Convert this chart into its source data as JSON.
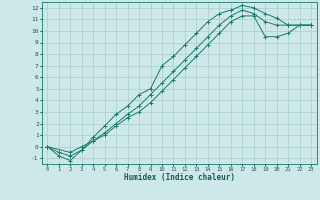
{
  "xlabel": "Humidex (Indice chaleur)",
  "bg_color": "#cce8e8",
  "grid_color": "#aacccc",
  "line_color": "#1a7a6a",
  "xlim": [
    -0.5,
    23.5
  ],
  "ylim": [
    -1.5,
    12.5
  ],
  "xticks": [
    0,
    1,
    2,
    3,
    4,
    5,
    6,
    7,
    8,
    9,
    10,
    11,
    12,
    13,
    14,
    15,
    16,
    17,
    18,
    19,
    20,
    21,
    22,
    23
  ],
  "yticks": [
    -1,
    0,
    1,
    2,
    3,
    4,
    5,
    6,
    7,
    8,
    9,
    10,
    11,
    12
  ],
  "series": [
    {
      "x": [
        0,
        1,
        2,
        3,
        4,
        5,
        6,
        7,
        8,
        9,
        10,
        11,
        12,
        13,
        14,
        15,
        16,
        17,
        18,
        19,
        20,
        21,
        22,
        23
      ],
      "y": [
        0,
        -0.8,
        -1.2,
        -0.3,
        0.8,
        1.8,
        2.8,
        3.5,
        4.5,
        5.0,
        7.0,
        7.8,
        8.8,
        9.8,
        10.8,
        11.5,
        11.8,
        12.2,
        12.0,
        11.5,
        11.1,
        10.5,
        10.5,
        10.5
      ],
      "marker": "+"
    },
    {
      "x": [
        0,
        1,
        2,
        3,
        4,
        5,
        6,
        7,
        8,
        9,
        10,
        11,
        12,
        13,
        14,
        15,
        16,
        17,
        18,
        19,
        20,
        21,
        22,
        23
      ],
      "y": [
        0,
        -0.5,
        -0.8,
        -0.3,
        0.5,
        1.2,
        2.0,
        2.8,
        3.5,
        4.5,
        5.5,
        6.5,
        7.5,
        8.5,
        9.5,
        10.5,
        11.3,
        11.8,
        11.5,
        10.8,
        10.5,
        10.5,
        10.5,
        10.5
      ],
      "marker": "+"
    },
    {
      "x": [
        0,
        2,
        3,
        4,
        5,
        6,
        7,
        8,
        9,
        10,
        11,
        12,
        13,
        14,
        15,
        16,
        17,
        18,
        19,
        20,
        21,
        22,
        23
      ],
      "y": [
        0,
        -0.5,
        0.0,
        0.5,
        1.0,
        1.8,
        2.5,
        3.0,
        3.8,
        4.8,
        5.8,
        6.8,
        7.8,
        8.8,
        9.8,
        10.8,
        11.3,
        11.3,
        9.5,
        9.5,
        9.8,
        10.5,
        10.5
      ],
      "marker": "+"
    }
  ]
}
